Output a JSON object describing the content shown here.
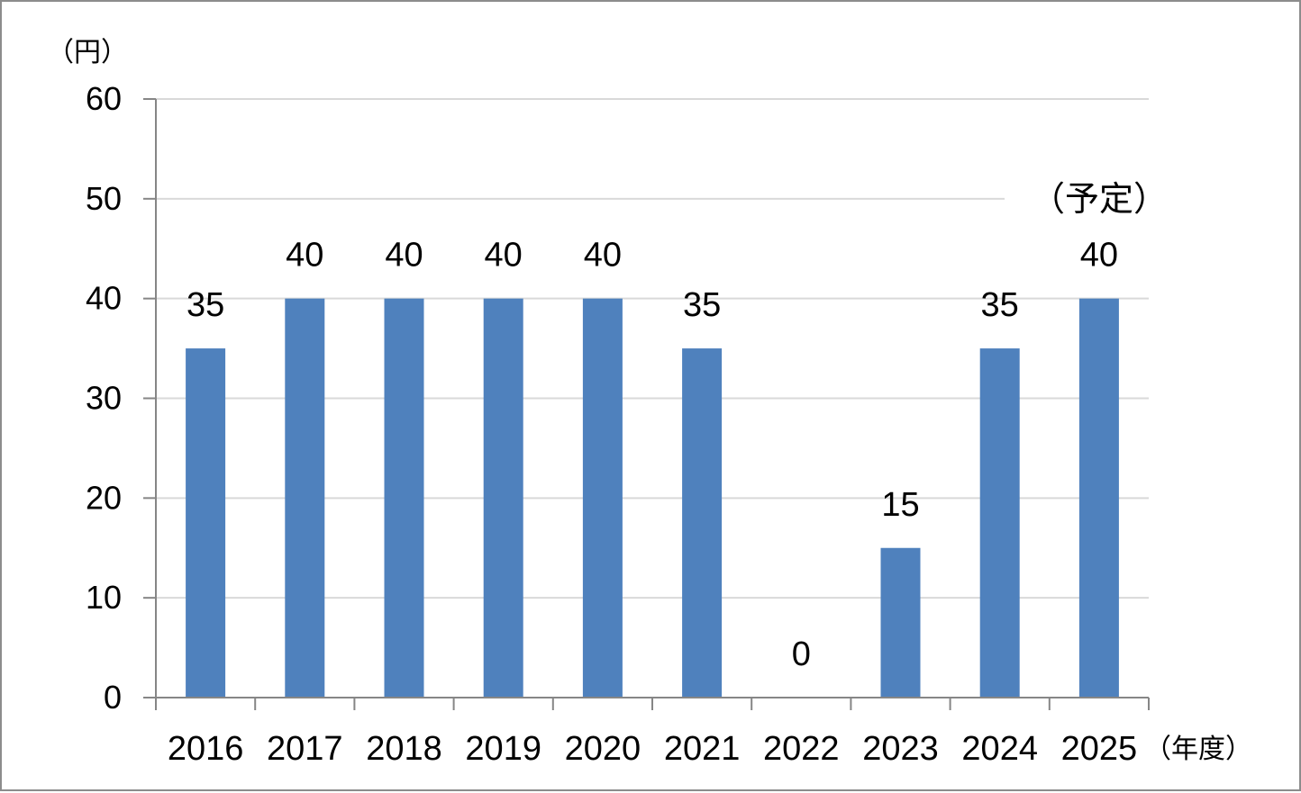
{
  "chart_data": {
    "type": "bar",
    "categories": [
      "2016",
      "2017",
      "2018",
      "2019",
      "2020",
      "2021",
      "2022",
      "2023",
      "2024",
      "2025"
    ],
    "values": [
      35,
      40,
      40,
      40,
      40,
      35,
      0,
      15,
      35,
      40
    ],
    "data_labels": [
      "35",
      "40",
      "40",
      "40",
      "40",
      "35",
      "0",
      "15",
      "35",
      "40"
    ],
    "y_unit_label": "（円）",
    "x_unit_label": "（年度）",
    "annotation": "（予定）",
    "ylim": [
      0,
      60
    ],
    "yticks": [
      0,
      10,
      20,
      30,
      40,
      50,
      60
    ],
    "ytick_labels": [
      "0",
      "10",
      "20",
      "30",
      "40",
      "50",
      "60"
    ],
    "grid": true,
    "bar_color": "#4f81bd",
    "grid_color": "#d9d9d9",
    "axis_color": "#868686"
  }
}
